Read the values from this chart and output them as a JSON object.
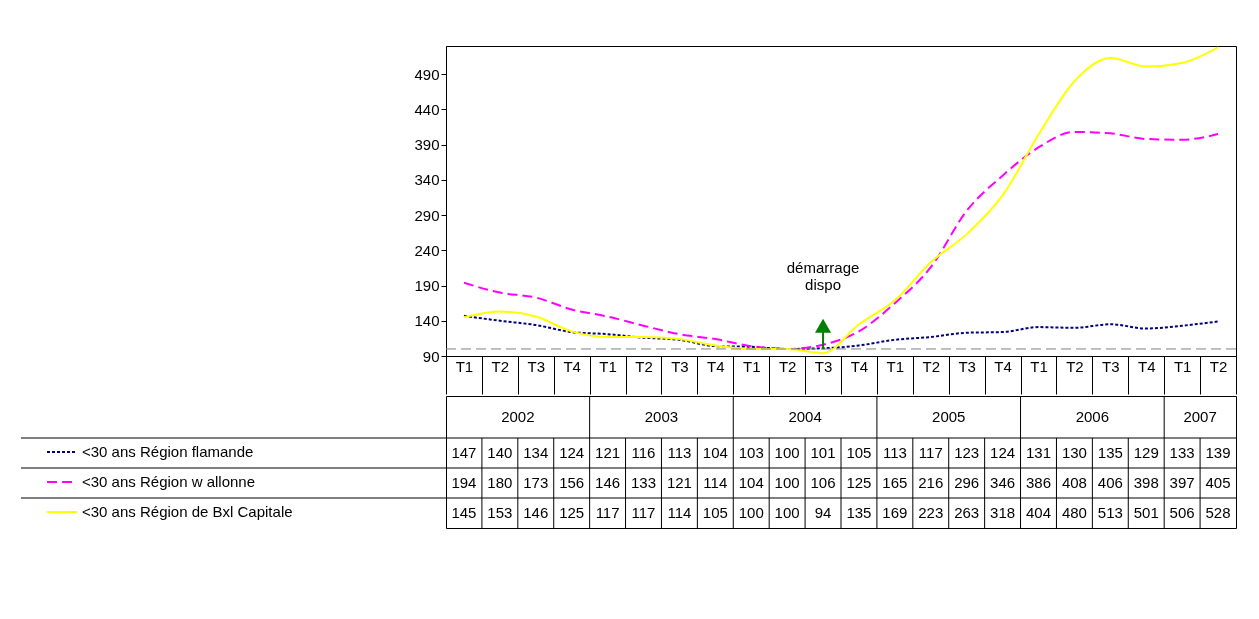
{
  "chart_data": {
    "type": "line",
    "categories": [
      "T1",
      "T2",
      "T3",
      "T4",
      "T1",
      "T2",
      "T3",
      "T4",
      "T1",
      "T2",
      "T3",
      "T4",
      "T1",
      "T2",
      "T3",
      "T4",
      "T1",
      "T2",
      "T3",
      "T4",
      "T1",
      "T2"
    ],
    "series": [
      {
        "name": "<30 ans Région flamande",
        "color": "#000080",
        "line_style": "dotted",
        "values": [
          147,
          140,
          134,
          124,
          121,
          116,
          113,
          104,
          103,
          100,
          101,
          105,
          113,
          117,
          123,
          124,
          131,
          130,
          135,
          129,
          133,
          139
        ]
      },
      {
        "name": "<30 ans Région w allonne",
        "color": "#ff00ff",
        "line_style": "dashed",
        "values": [
          194,
          180,
          173,
          156,
          146,
          133,
          121,
          114,
          104,
          100,
          106,
          125,
          165,
          216,
          296,
          346,
          386,
          408,
          406,
          398,
          397,
          405
        ]
      },
      {
        "name": "<30 ans Région de Bxl Capitale",
        "color": "#ffff00",
        "line_style": "solid",
        "values": [
          145,
          153,
          146,
          125,
          117,
          117,
          114,
          105,
          100,
          100,
          94,
          135,
          169,
          223,
          263,
          318,
          404,
          480,
          513,
          501,
          506,
          528
        ]
      }
    ],
    "ylim": [
      90,
      530
    ],
    "yticks": [
      90,
      140,
      190,
      240,
      290,
      340,
      390,
      440,
      490
    ],
    "ref_lines": [
      {
        "axis": "y",
        "value": 100,
        "color": "#808080",
        "line_style": "dashed"
      }
    ],
    "annotations": [
      "démarrage\ndispo",
      "2002",
      "2003",
      "2004",
      "2005",
      "2006",
      "2007"
    ],
    "data_labels": true,
    "legend": "bottom left",
    "grid": false
  }
}
